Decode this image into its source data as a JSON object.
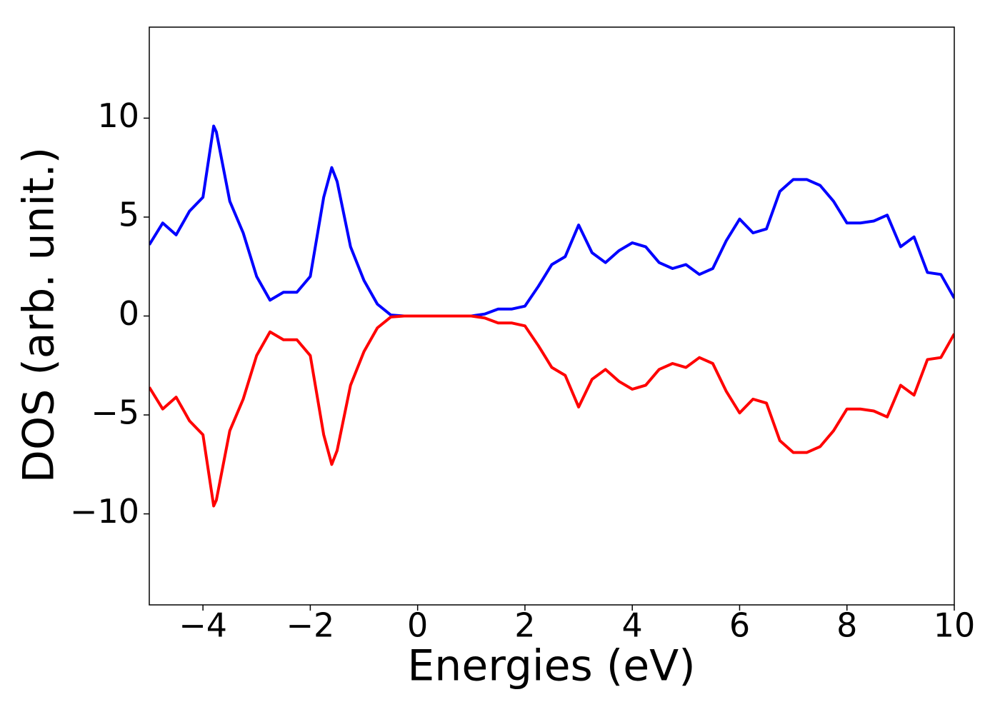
{
  "chart_data": {
    "type": "line",
    "xlabel": "Energies (eV)",
    "ylabel": "DOS (arb. unit.)",
    "x": [
      -5,
      -4.75,
      -4.5,
      -4.25,
      -4,
      -3.8,
      -3.75,
      -3.5,
      -3.25,
      -3,
      -2.75,
      -2.5,
      -2.25,
      -2,
      -1.75,
      -1.6,
      -1.5,
      -1.25,
      -1,
      -0.75,
      -0.5,
      -0.25,
      0,
      0.25,
      0.5,
      0.75,
      1,
      1.25,
      1.5,
      1.75,
      2,
      2.25,
      2.5,
      2.75,
      3,
      3.25,
      3.5,
      3.75,
      4,
      4.25,
      4.5,
      4.75,
      5,
      5.25,
      5.5,
      5.75,
      6,
      6.25,
      6.5,
      6.75,
      7,
      7.25,
      7.5,
      7.75,
      8,
      8.25,
      8.5,
      8.75,
      9,
      9.25,
      9.5,
      9.75,
      10
    ],
    "series": [
      {
        "color": "#0000ff",
        "values": [
          3.6,
          4.7,
          4.1,
          5.3,
          6.0,
          9.6,
          9.3,
          5.8,
          4.2,
          2.0,
          0.8,
          1.2,
          1.2,
          2.0,
          6.0,
          7.5,
          6.8,
          3.5,
          1.8,
          0.6,
          0.05,
          0,
          0,
          0,
          0,
          0,
          0,
          0.1,
          0.35,
          0.35,
          0.5,
          1.5,
          2.6,
          3.0,
          4.6,
          3.2,
          2.7,
          3.3,
          3.7,
          3.5,
          2.7,
          2.4,
          2.6,
          2.1,
          2.4,
          3.8,
          4.9,
          4.2,
          4.4,
          6.3,
          6.9,
          6.9,
          6.6,
          5.8,
          4.7,
          4.7,
          4.8,
          5.1,
          3.5,
          4.0,
          2.2,
          2.1,
          0.9
        ]
      },
      {
        "color": "#ff0000",
        "values": [
          -3.6,
          -4.7,
          -4.1,
          -5.3,
          -6.0,
          -9.6,
          -9.3,
          -5.8,
          -4.2,
          -2.0,
          -0.8,
          -1.2,
          -1.2,
          -2.0,
          -6.0,
          -7.5,
          -6.8,
          -3.5,
          -1.8,
          -0.6,
          -0.05,
          0,
          0,
          0,
          0,
          0,
          0,
          -0.1,
          -0.35,
          -0.35,
          -0.5,
          -1.5,
          -2.6,
          -3.0,
          -4.6,
          -3.2,
          -2.7,
          -3.3,
          -3.7,
          -3.5,
          -2.7,
          -2.4,
          -2.6,
          -2.1,
          -2.4,
          -3.8,
          -4.9,
          -4.2,
          -4.4,
          -6.3,
          -6.9,
          -6.9,
          -6.6,
          -5.8,
          -4.7,
          -4.7,
          -4.8,
          -5.1,
          -3.5,
          -4.0,
          -2.2,
          -2.1,
          -0.9
        ]
      }
    ],
    "xlim": [
      -5,
      10
    ],
    "xticks": [
      {
        "value": -4,
        "label": "−4"
      },
      {
        "value": -2,
        "label": "−2"
      },
      0,
      2,
      4,
      6,
      8,
      10
    ],
    "ylim": [
      -14.6,
      14.6
    ],
    "yticks": [
      {
        "value": -10,
        "label": "−10"
      },
      {
        "value": -5,
        "label": "−5"
      },
      0,
      5,
      10
    ]
  }
}
